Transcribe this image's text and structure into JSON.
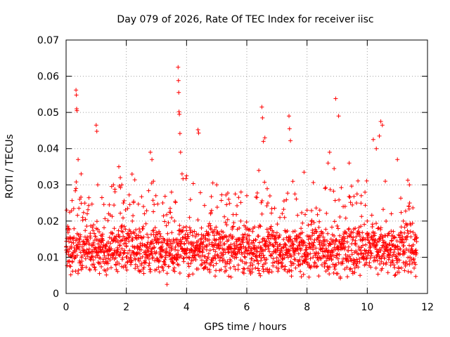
{
  "chart_data": {
    "type": "scatter",
    "title": "Day 079 of 2026, Rate Of TEC Index for receiver iisc",
    "xlabel": "GPS time / hours",
    "ylabel": "ROTI / TECUs",
    "xlim": [
      0,
      12
    ],
    "ylim": [
      0,
      0.07
    ],
    "x_ticks": [
      0,
      2,
      4,
      6,
      8,
      10,
      12
    ],
    "y_ticks": [
      0,
      0.01,
      0.02,
      0.03,
      0.04,
      0.05,
      0.06,
      0.07
    ],
    "x_tick_labels": [
      "0",
      "2",
      "4",
      "6",
      "8",
      "10",
      "12"
    ],
    "y_tick_labels": [
      "0",
      "0.01",
      "0.02",
      "0.03",
      "0.04",
      "0.05",
      "0.06",
      "0.07"
    ],
    "grid": true,
    "marker": "+",
    "series": [
      {
        "name": "ROTI",
        "color": "#ff0000",
        "points": [
          [
            0.0,
            0.012
          ],
          [
            0.05,
            0.018
          ],
          [
            0.1,
            0.009
          ],
          [
            0.15,
            0.015
          ],
          [
            0.2,
            0.011
          ],
          [
            0.33,
            0.0562
          ],
          [
            0.34,
            0.0548
          ],
          [
            0.35,
            0.051
          ],
          [
            0.36,
            0.0505
          ],
          [
            0.4,
            0.037
          ],
          [
            0.45,
            0.026
          ],
          [
            0.5,
            0.033
          ],
          [
            0.55,
            0.021
          ],
          [
            0.7,
            0.022
          ],
          [
            0.8,
            0.0095
          ],
          [
            0.9,
            0.014
          ],
          [
            1.0,
            0.0465
          ],
          [
            1.02,
            0.0448
          ],
          [
            1.05,
            0.03
          ],
          [
            1.1,
            0.017
          ],
          [
            1.2,
            0.012
          ],
          [
            1.4,
            0.0105
          ],
          [
            1.6,
            0.018
          ],
          [
            1.75,
            0.035
          ],
          [
            1.8,
            0.032
          ],
          [
            1.85,
            0.03
          ],
          [
            1.9,
            0.025
          ],
          [
            2.0,
            0.013
          ],
          [
            2.2,
            0.02
          ],
          [
            2.4,
            0.016
          ],
          [
            2.6,
            0.022
          ],
          [
            2.8,
            0.039
          ],
          [
            2.85,
            0.037
          ],
          [
            2.9,
            0.031
          ],
          [
            3.0,
            0.014
          ],
          [
            3.2,
            0.012
          ],
          [
            3.35,
            0.0025
          ],
          [
            3.5,
            0.028
          ],
          [
            3.6,
            0.02
          ],
          [
            3.72,
            0.0625
          ],
          [
            3.73,
            0.0588
          ],
          [
            3.74,
            0.0555
          ],
          [
            3.75,
            0.0502
          ],
          [
            3.76,
            0.0495
          ],
          [
            3.78,
            0.0442
          ],
          [
            3.8,
            0.039
          ],
          [
            3.85,
            0.033
          ],
          [
            4.0,
            0.0325
          ],
          [
            4.1,
            0.021
          ],
          [
            4.2,
            0.017
          ],
          [
            4.38,
            0.0452
          ],
          [
            4.4,
            0.0443
          ],
          [
            4.5,
            0.014
          ],
          [
            4.8,
            0.022
          ],
          [
            5.0,
            0.03
          ],
          [
            5.2,
            0.015
          ],
          [
            5.4,
            0.026
          ],
          [
            5.6,
            0.011
          ],
          [
            5.8,
            0.02
          ],
          [
            6.0,
            0.027
          ],
          [
            6.2,
            0.014
          ],
          [
            6.4,
            0.034
          ],
          [
            6.5,
            0.0515
          ],
          [
            6.52,
            0.0485
          ],
          [
            6.55,
            0.042
          ],
          [
            6.6,
            0.043
          ],
          [
            6.7,
            0.025
          ],
          [
            6.9,
            0.013
          ],
          [
            7.1,
            0.021
          ],
          [
            7.3,
            0.017
          ],
          [
            7.4,
            0.049
          ],
          [
            7.42,
            0.0455
          ],
          [
            7.45,
            0.0422
          ],
          [
            7.6,
            0.012
          ],
          [
            7.8,
            0.018
          ],
          [
            7.9,
            0.0335
          ],
          [
            8.0,
            0.023
          ],
          [
            8.2,
            0.01
          ],
          [
            8.4,
            0.016
          ],
          [
            8.6,
            0.029
          ],
          [
            8.7,
            0.036
          ],
          [
            8.75,
            0.039
          ],
          [
            8.9,
            0.0345
          ],
          [
            8.95,
            0.0538
          ],
          [
            9.05,
            0.049
          ],
          [
            9.2,
            0.024
          ],
          [
            9.4,
            0.036
          ],
          [
            9.6,
            0.018
          ],
          [
            9.8,
            0.027
          ],
          [
            10.0,
            0.02
          ],
          [
            10.2,
            0.0425
          ],
          [
            10.3,
            0.04
          ],
          [
            10.4,
            0.0435
          ],
          [
            10.45,
            0.0475
          ],
          [
            10.5,
            0.0465
          ],
          [
            10.6,
            0.031
          ],
          [
            10.8,
            0.022
          ],
          [
            11.0,
            0.037
          ],
          [
            11.2,
            0.02
          ],
          [
            11.4,
            0.03
          ],
          [
            11.6,
            0.008
          ]
        ],
        "bulk": {
          "x_range": [
            0,
            11.65
          ],
          "typical_range": [
            0.004,
            0.02
          ],
          "sample_every_hours": 0.006,
          "description_note": "dense band of points between ~0.004 and ~0.02 TECU/min across the whole interval"
        }
      }
    ]
  }
}
